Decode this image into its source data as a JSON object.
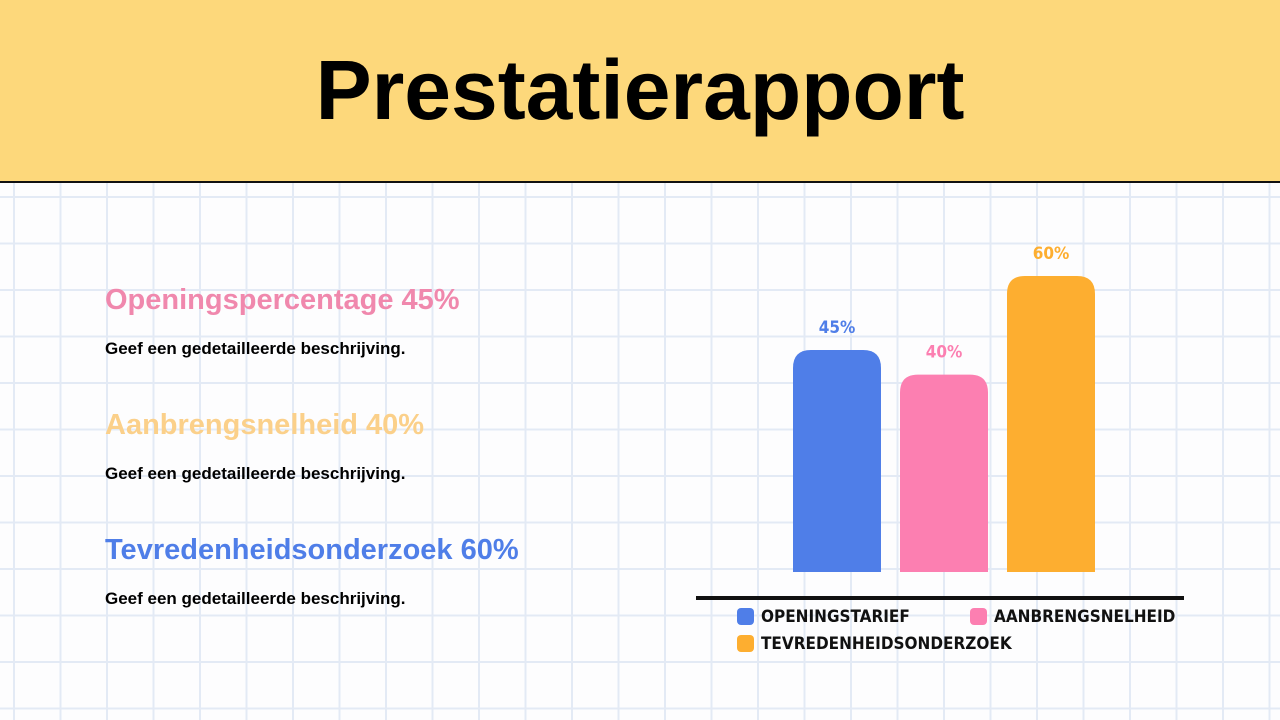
{
  "header": {
    "title": "Prestatierapport"
  },
  "items": [
    {
      "heading": "Openingspercentage 45%",
      "description": "Geef een gedetailleerde beschrijving.",
      "color": "#f088ad"
    },
    {
      "heading": "Aanbrengsnelheid 40%",
      "description": "Geef een gedetailleerde beschrijving.",
      "color": "#fbd08a"
    },
    {
      "heading": "Tevredenheidsonderzoek 60%",
      "description": "Geef een gedetailleerde beschrijving.",
      "color": "#4f7ee8"
    }
  ],
  "chart_data": {
    "type": "bar",
    "categories": [
      "OPENINGSTARIEF",
      "AANBRENGSNELHEID",
      "TEVREDENHEIDSONDERZOEK"
    ],
    "values": [
      45,
      40,
      60
    ],
    "value_labels": [
      "45%",
      "40%",
      "60%"
    ],
    "colors": [
      "#4f7ee8",
      "#fc7fb1",
      "#fdae30"
    ]
  }
}
